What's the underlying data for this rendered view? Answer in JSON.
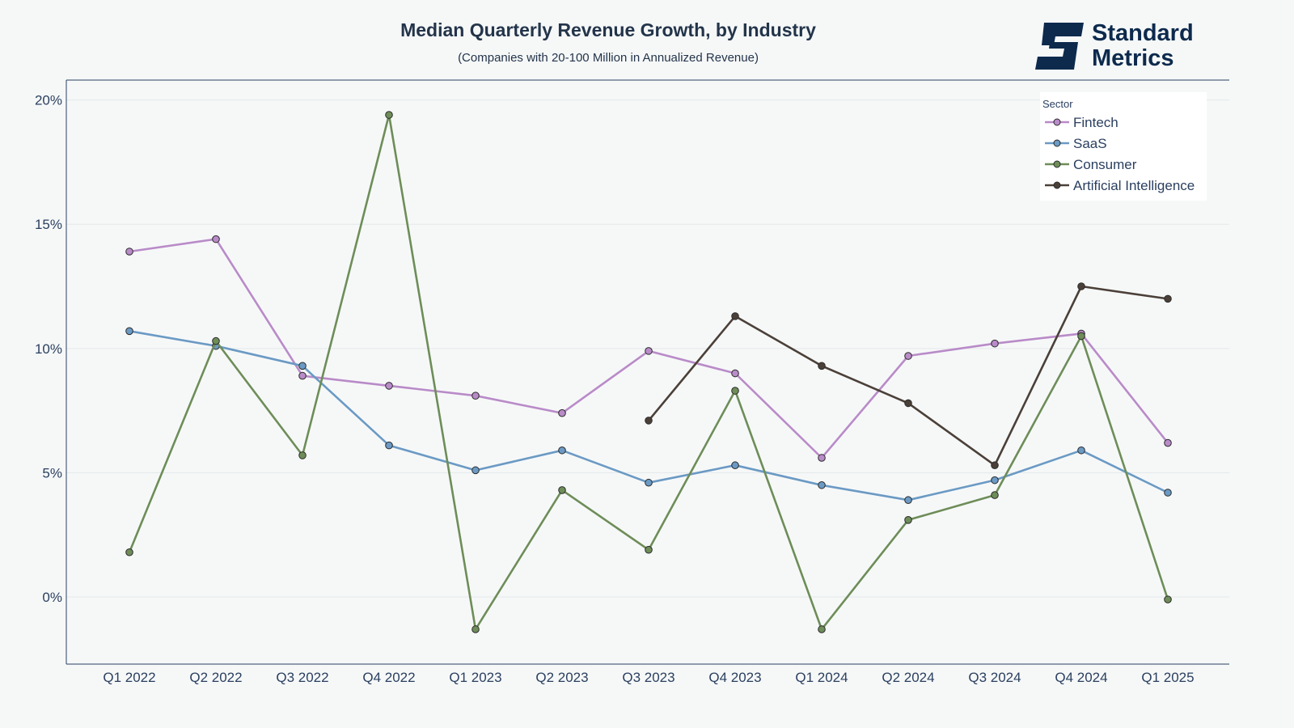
{
  "chart_data": {
    "type": "line",
    "title": "Median Quarterly Revenue Growth, by Industry",
    "subtitle": "(Companies with 20-100 Million in Annualized Revenue)",
    "categories": [
      "Q1 2022",
      "Q2 2022",
      "Q3 2022",
      "Q4 2022",
      "Q1 2023",
      "Q2 2023",
      "Q3 2023",
      "Q4 2023",
      "Q1 2024",
      "Q2 2024",
      "Q3 2024",
      "Q4 2024",
      "Q1 2025"
    ],
    "y_unit": "%",
    "ylim": [
      -2.7,
      20.8
    ],
    "yticks": [
      0,
      5,
      10,
      15,
      20
    ],
    "ytick_labels": [
      "0%",
      "5%",
      "10%",
      "15%",
      "20%"
    ],
    "grid": true,
    "legend": {
      "title": "Sector",
      "position": "top-right"
    },
    "series": [
      {
        "name": "Fintech",
        "color": "#b98bc8",
        "values": [
          13.9,
          14.4,
          8.9,
          8.5,
          8.1,
          7.4,
          9.9,
          9.0,
          5.6,
          9.7,
          10.2,
          10.6,
          6.2
        ]
      },
      {
        "name": "SaaS",
        "color": "#6b9ac4",
        "values": [
          10.7,
          10.1,
          9.3,
          6.1,
          5.1,
          5.9,
          4.6,
          5.3,
          4.5,
          3.9,
          4.7,
          5.9,
          4.2
        ]
      },
      {
        "name": "Consumer",
        "color": "#6e8d58",
        "values": [
          1.8,
          10.3,
          5.7,
          19.4,
          -1.3,
          4.3,
          1.9,
          8.3,
          -1.3,
          3.1,
          4.1,
          10.5,
          -0.1
        ]
      },
      {
        "name": "Artificial Intelligence",
        "color": "#4b4038",
        "values": [
          null,
          null,
          null,
          null,
          null,
          null,
          7.1,
          11.3,
          9.3,
          7.8,
          5.3,
          12.5,
          12.0
        ]
      }
    ]
  },
  "logo": {
    "line1": "Standard",
    "line2": "Metrics",
    "color": "#0d2a4d"
  }
}
